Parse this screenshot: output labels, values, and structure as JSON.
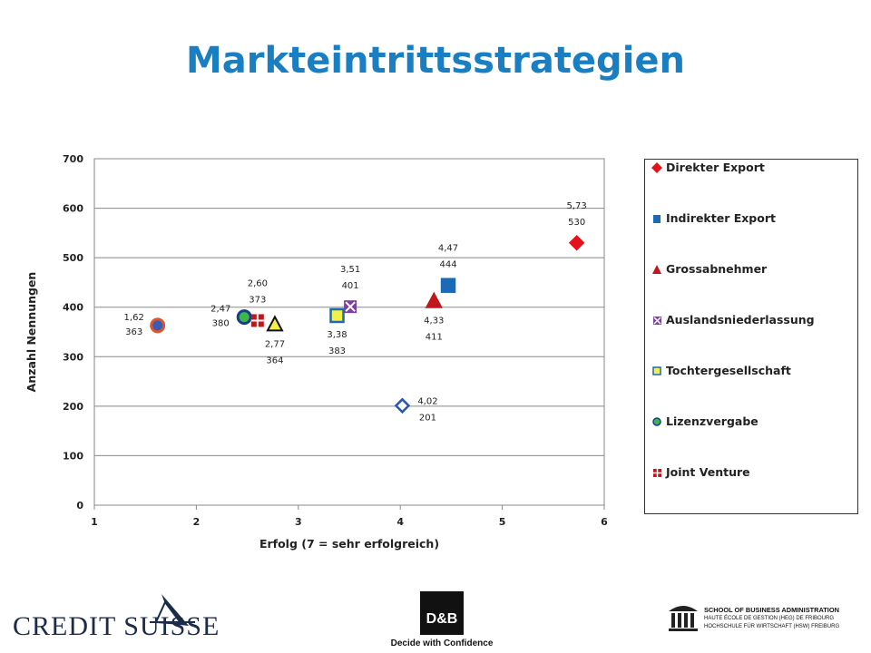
{
  "title": "Markteintrittsstrategien",
  "chart_data": {
    "type": "scatter",
    "xlabel": "Erfolg (7 = sehr erfolgreich)",
    "ylabel": "Anzahl Nennungen",
    "xlim": [
      1,
      6
    ],
    "ylim": [
      0,
      700
    ],
    "x_ticks": [
      "1",
      "2",
      "3",
      "4",
      "5",
      "6"
    ],
    "y_ticks": [
      "0",
      "100",
      "200",
      "300",
      "400",
      "500",
      "600",
      "700"
    ],
    "grid": "horizontal",
    "legend_position": "right",
    "points": [
      {
        "x": 1.62,
        "y": 363,
        "label_x": "1,62",
        "label_y": "363",
        "marker": "circle",
        "color": "#3b5bb5",
        "edge": "#e0552c",
        "label_pos": "left"
      },
      {
        "x": 2.47,
        "y": 380,
        "label_x": "2,47",
        "label_y": "380",
        "marker": "circle",
        "color": "#3cb84a",
        "edge": "#1a3d8a",
        "label_pos": "left",
        "series": "Lizenzvergabe"
      },
      {
        "x": 2.6,
        "y": 373,
        "label_x": "2,60",
        "label_y": "373",
        "marker": "cross-square",
        "color": "#c0171c",
        "edge": "#ffffff",
        "label_pos": "above",
        "series": "Joint Venture"
      },
      {
        "x": 2.77,
        "y": 364,
        "label_x": "2,77",
        "label_y": "364",
        "marker": "triangle",
        "color": "#f2f04a",
        "edge": "#111111",
        "label_pos": "below"
      },
      {
        "x": 3.38,
        "y": 383,
        "label_x": "3,38",
        "label_y": "383",
        "marker": "square",
        "color": "#f2f04a",
        "edge": "#1a6ab8",
        "label_pos": "below",
        "series": "Tochtergesellschaft"
      },
      {
        "x": 3.51,
        "y": 401,
        "label_x": "3,51",
        "label_y": "401",
        "marker": "x-square",
        "color": "#7d3fa0",
        "edge": "#ffffff",
        "label_pos": "above",
        "series": "Auslandsniederlassung"
      },
      {
        "x": 4.02,
        "y": 201,
        "label_x": "4,02",
        "label_y": "201",
        "marker": "diamond-open",
        "color": "#ffffff",
        "edge": "#2c5aa0",
        "label_pos": "right"
      },
      {
        "x": 4.33,
        "y": 411,
        "label_x": "4,33",
        "label_y": "411",
        "marker": "triangle",
        "color": "#c0171c",
        "edge": "#c0171c",
        "label_pos": "below",
        "series": "Grossabnehmer"
      },
      {
        "x": 4.47,
        "y": 444,
        "label_x": "4,47",
        "label_y": "444",
        "marker": "square",
        "color": "#1a6ab8",
        "edge": "#1a6ab8",
        "label_pos": "above",
        "series": "Indirekter Export"
      },
      {
        "x": 5.73,
        "y": 530,
        "label_x": "5,73",
        "label_y": "530",
        "marker": "diamond",
        "color": "#e3121b",
        "edge": "#e3121b",
        "label_pos": "above",
        "series": "Direkter Export"
      }
    ],
    "legend": [
      {
        "name": "Direkter Export",
        "marker": "diamond",
        "color": "#e3121b"
      },
      {
        "name": "Indirekter Export",
        "marker": "square",
        "color": "#1a6ab8"
      },
      {
        "name": "Grossabnehmer",
        "marker": "triangle",
        "color": "#c0171c"
      },
      {
        "name": "Auslandsniederlassung",
        "marker": "x-square",
        "color": "#7d3fa0"
      },
      {
        "name": "Tochtergesellschaft",
        "marker": "square-yellow",
        "color": "#f2f04a"
      },
      {
        "name": "Lizenzvergabe",
        "marker": "circle",
        "color": "#3cb84a"
      },
      {
        "name": "Joint Venture",
        "marker": "cross-square",
        "color": "#c0171c"
      }
    ]
  },
  "footer": {
    "credit_suisse": "CREDIT SUISSE",
    "db_logo": "D&B",
    "db_tagline": "Decide with Confidence",
    "sba_line1": "SCHOOL OF BUSINESS ADMINISTRATION",
    "sba_line2": "HAUTE ÉCOLE DE GESTION (HEG) DE FRIBOURG",
    "sba_line3": "HOCHSCHULE FÜR WIRTSCHAFT (HSW) FREIBURG"
  }
}
